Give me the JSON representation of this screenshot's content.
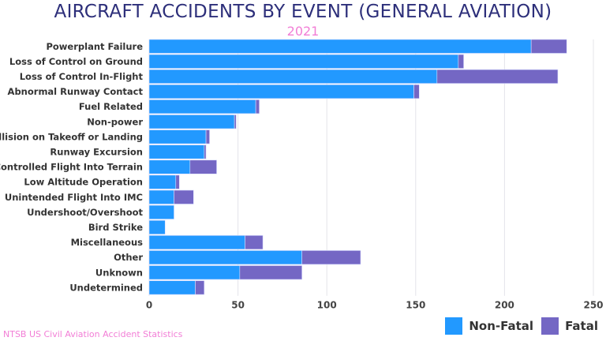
{
  "chart_data": {
    "type": "bar",
    "orientation": "horizontal",
    "stacked": true,
    "title": "AIRCRAFT ACCIDENTS BY EVENT (GENERAL AVIATION)",
    "subtitle": "2021",
    "source": "NTSB US Civil Aviation Accident Statistics",
    "categories": [
      "Powerplant Failure",
      "Loss of Control on Ground",
      "Loss of Control In-Flight",
      "Abnormal Runway Contact",
      "Fuel Related",
      "Non-power",
      "Collision on Takeoff or Landing",
      "Runway Excursion",
      "Controlled Flight Into Terrain",
      "Low Altitude Operation",
      "Unintended Flight Into IMC",
      "Undershoot/Overshoot",
      "Bird Strike",
      "Miscellaneous",
      "Other",
      "Unknown",
      "Undetermined"
    ],
    "series": [
      {
        "name": "Non-Fatal",
        "color": "#2299ff",
        "values": [
          215,
          174,
          162,
          149,
          60,
          48,
          32,
          31,
          23,
          15,
          14,
          14,
          9,
          54,
          86,
          51,
          26
        ]
      },
      {
        "name": "Fatal",
        "color": "#7467c4",
        "values": [
          20,
          3,
          68,
          3,
          2,
          1,
          2,
          1,
          15,
          2,
          11,
          0,
          0,
          10,
          33,
          35,
          5
        ]
      }
    ],
    "xlim": [
      0,
      250
    ],
    "xticks": [
      0,
      50,
      100,
      150,
      200,
      250
    ],
    "grid": true,
    "legend_position": "bottom-right"
  }
}
